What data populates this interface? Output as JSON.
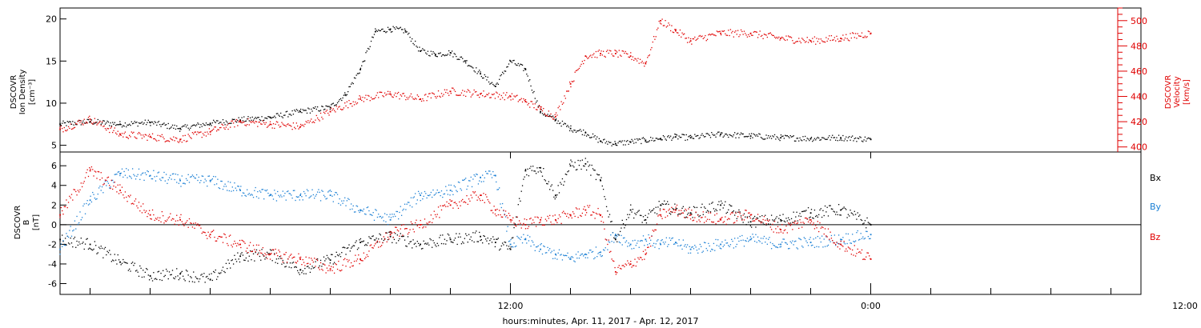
{
  "colors": {
    "density": "#000000",
    "velocity": "#e00000",
    "bx": "#000000",
    "by": "#1a7fd4",
    "bz": "#e00000"
  },
  "xaxis": {
    "label": "hours:minutes, Apr. 11, 2017 - Apr. 12, 2017",
    "tick_labels": [
      "12:00",
      "0:00",
      "12:00"
    ],
    "range_hours": [
      -3.0,
      33.0
    ],
    "major_ticks_hours": [
      12,
      24,
      36
    ],
    "minor_step_hours": 2
  },
  "chart_data": [
    {
      "type": "scatter",
      "panel": "top",
      "ylabel_left": [
        "DSCOVR",
        "Ion Density",
        "[cm⁻³]"
      ],
      "ylabel_right": [
        "DSCOVR",
        "Velocity",
        "[km/s]"
      ],
      "ylim_left": [
        4.2,
        21.3
      ],
      "ylim_right": [
        396,
        510
      ],
      "left_ticks": [
        5,
        10,
        15,
        20
      ],
      "right_ticks": [
        400,
        420,
        440,
        460,
        480,
        500
      ],
      "series": [
        {
          "axis": "left",
          "color": "#000000",
          "x": [
            -3.0,
            -2.0,
            -1.0,
            0.0,
            1.0,
            2.0,
            3.0,
            4.0,
            5.0,
            6.0,
            6.5,
            7.0,
            7.5,
            8.0,
            8.5,
            9.0,
            9.5,
            10.0,
            10.5,
            11.0,
            11.5,
            12.0,
            12.5,
            13.0,
            13.5,
            14.0,
            14.5,
            15.0,
            15.5,
            16.0,
            16.5,
            17.0,
            17.5,
            18.0,
            19.0,
            20.0,
            21.0,
            22.0,
            23.0,
            24.0
          ],
          "y": [
            7.5,
            7.8,
            7.5,
            7.7,
            7.0,
            7.6,
            8.0,
            8.3,
            9.0,
            9.5,
            11.0,
            14.0,
            18.5,
            18.8,
            18.6,
            16.2,
            15.8,
            16.0,
            15.0,
            13.5,
            12.0,
            15.0,
            14.0,
            9.0,
            8.0,
            7.0,
            6.5,
            5.5,
            5.2,
            5.4,
            5.6,
            5.8,
            6.0,
            5.9,
            6.3,
            6.1,
            5.9,
            5.8,
            5.9,
            5.7
          ]
        },
        {
          "axis": "right",
          "color": "#e00000",
          "x": [
            -3.0,
            -2.0,
            -1.0,
            0.0,
            1.0,
            2.0,
            3.0,
            4.0,
            5.0,
            6.0,
            7.0,
            8.0,
            9.0,
            10.0,
            11.0,
            12.0,
            12.5,
            13.0,
            13.5,
            14.0,
            14.5,
            15.0,
            15.5,
            16.0,
            16.5,
            17.0,
            17.5,
            18.0,
            19.0,
            20.0,
            21.0,
            22.0,
            23.0,
            24.0
          ],
          "y": [
            414,
            422,
            410,
            408,
            406,
            412,
            420,
            418,
            416,
            428,
            438,
            442,
            438,
            444,
            442,
            440,
            436,
            430,
            424,
            450,
            472,
            474,
            474,
            472,
            466,
            500,
            492,
            484,
            490,
            490,
            486,
            484,
            486,
            490
          ]
        }
      ]
    },
    {
      "type": "scatter",
      "panel": "bottom",
      "ylabel_left": [
        "DSCOVR",
        "B",
        "[nT]"
      ],
      "ylim": [
        -7.1,
        7.4
      ],
      "left_ticks": [
        -6,
        -4,
        -2,
        0,
        2,
        4,
        6
      ],
      "legend": [
        "Bx",
        "By",
        "Bz"
      ],
      "series": [
        {
          "name": "Bx",
          "color": "#000000",
          "x": [
            -3.0,
            -2.0,
            -1.0,
            0.0,
            1.0,
            2.0,
            3.0,
            4.0,
            5.0,
            6.0,
            7.0,
            8.0,
            9.0,
            10.0,
            11.0,
            11.5,
            12.0,
            12.5,
            13.0,
            13.5,
            14.0,
            14.5,
            15.0,
            15.5,
            16.0,
            16.5,
            17.0,
            17.5,
            18.0,
            19.0,
            20.0,
            21.0,
            22.0,
            23.0,
            24.0
          ],
          "y": [
            -1.5,
            -2.0,
            -3.8,
            -5.2,
            -5.0,
            -5.6,
            -3.2,
            -3.0,
            -4.6,
            -3.6,
            -1.8,
            -1.2,
            -2.0,
            -1.5,
            -1.2,
            -1.8,
            -2.5,
            5.5,
            5.8,
            3.0,
            6.0,
            6.2,
            4.5,
            -1.5,
            1.5,
            0.5,
            2.0,
            1.5,
            1.2,
            2.0,
            0.3,
            0.5,
            1.2,
            1.5,
            0.0
          ]
        },
        {
          "name": "By",
          "color": "#1a7fd4",
          "x": [
            -3.0,
            -2.0,
            -1.0,
            0.0,
            1.0,
            2.0,
            3.0,
            4.0,
            5.0,
            6.0,
            7.0,
            8.0,
            9.0,
            10.0,
            11.0,
            11.5,
            12.0,
            12.5,
            13.0,
            13.5,
            14.0,
            14.5,
            15.0,
            15.5,
            16.0,
            16.5,
            17.0,
            17.5,
            18.0,
            19.0,
            20.0,
            21.0,
            22.0,
            23.0,
            24.0
          ],
          "y": [
            -2.5,
            2.5,
            5.2,
            5.0,
            4.5,
            4.5,
            3.5,
            3.0,
            3.0,
            3.0,
            1.5,
            0.5,
            3.0,
            3.5,
            4.8,
            5.0,
            -2.0,
            -1.5,
            -2.5,
            -3.0,
            -3.5,
            -3.0,
            -2.8,
            -1.0,
            -2.0,
            -1.5,
            -2.0,
            -1.8,
            -2.5,
            -2.0,
            -1.5,
            -2.0,
            -1.8,
            -1.5,
            -1.0
          ]
        },
        {
          "name": "Bz",
          "color": "#e00000",
          "x": [
            -3.0,
            -2.0,
            -1.0,
            0.0,
            1.0,
            2.0,
            3.0,
            4.0,
            5.0,
            6.0,
            7.0,
            8.0,
            9.0,
            10.0,
            11.0,
            11.5,
            12.0,
            12.5,
            13.0,
            13.5,
            14.0,
            14.5,
            15.0,
            15.5,
            16.0,
            16.5,
            17.0,
            17.5,
            18.0,
            19.0,
            20.0,
            21.0,
            22.0,
            23.0,
            24.0
          ],
          "y": [
            1.0,
            5.5,
            3.5,
            1.0,
            0.5,
            -1.0,
            -2.0,
            -3.0,
            -3.5,
            -4.5,
            -3.5,
            -1.0,
            0.0,
            2.0,
            3.0,
            1.5,
            0.5,
            0.0,
            0.5,
            0.5,
            1.0,
            1.5,
            1.0,
            -4.8,
            -4.0,
            -3.0,
            1.0,
            1.5,
            1.0,
            0.5,
            1.0,
            -0.5,
            0.5,
            -2.0,
            -3.5
          ]
        }
      ]
    }
  ]
}
